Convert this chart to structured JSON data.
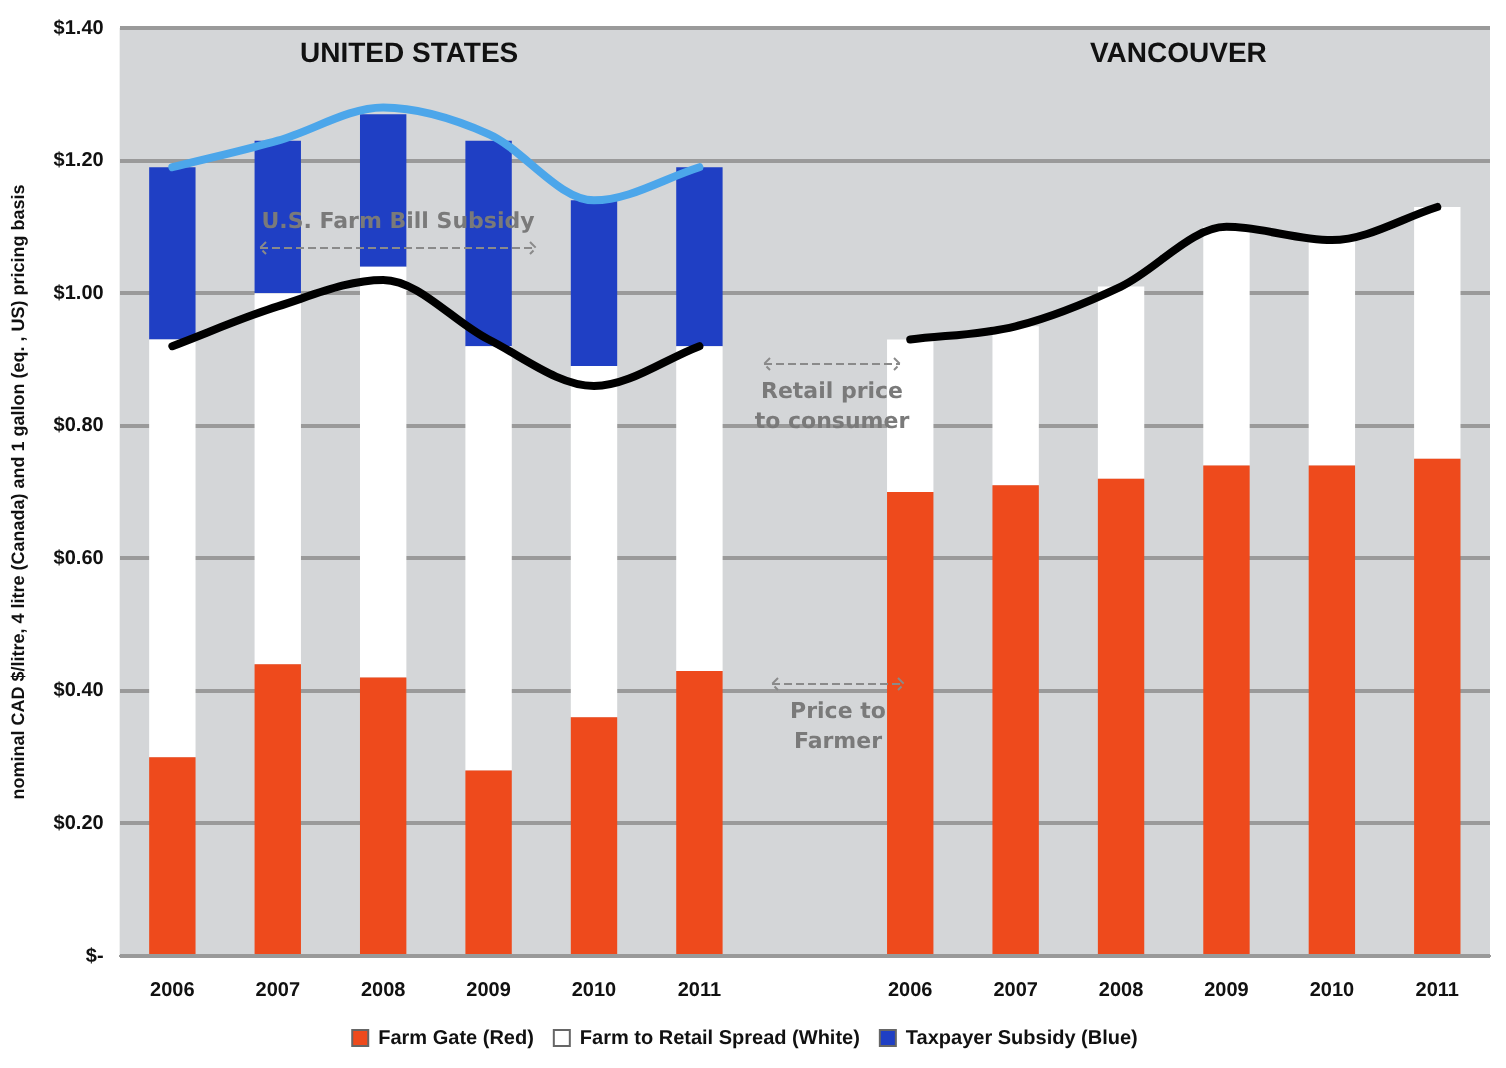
{
  "chart_data": {
    "type": "bar",
    "stacked": true,
    "ylabel": "nominal CAD $/litre, 4 litre (Canada) and 1 gallon (eq. , US) pricing basis",
    "categories": [
      "2006",
      "2007",
      "2008",
      "2009",
      "2010",
      "2011",
      null,
      "2006",
      "2007",
      "2008",
      "2009",
      "2010",
      "2011"
    ],
    "series": [
      {
        "name": "Farm Gate (Red)",
        "color": "#ee4a1c",
        "values": [
          0.3,
          0.44,
          0.42,
          0.28,
          0.36,
          0.43,
          null,
          0.7,
          0.71,
          0.72,
          0.74,
          0.74,
          0.75
        ]
      },
      {
        "name": "Farm to Retail Spread (White)",
        "color": "#ffffff",
        "values": [
          0.63,
          0.56,
          0.62,
          0.64,
          0.53,
          0.49,
          null,
          0.23,
          0.24,
          0.29,
          0.36,
          0.34,
          0.38
        ]
      },
      {
        "name": "Taxpayer Subsidy (Blue)",
        "color": "#1f3fc4",
        "values": [
          0.26,
          0.23,
          0.23,
          0.31,
          0.25,
          0.27,
          null,
          null,
          null,
          null,
          null,
          null,
          null
        ]
      },
      {
        "type": "line",
        "color": "#4ca6ea",
        "values": [
          1.19,
          1.23,
          1.28,
          1.24,
          1.14,
          1.19,
          null,
          null,
          null,
          null,
          null,
          null,
          null
        ]
      },
      {
        "type": "line",
        "color": "#000000",
        "values": [
          0.92,
          0.98,
          1.02,
          0.93,
          0.86,
          0.92,
          null,
          0.93,
          0.95,
          1.01,
          1.1,
          1.08,
          1.13
        ]
      }
    ],
    "ylim": [
      0,
      1.4
    ],
    "yticks": [
      {
        "value": 0,
        "label": "$-"
      },
      {
        "value": 0.2,
        "label": "$0.20"
      },
      {
        "value": 0.4,
        "label": "$0.40"
      },
      {
        "value": 0.6,
        "label": "$0.60"
      },
      {
        "value": 0.8,
        "label": "$0.80"
      },
      {
        "value": 1.0,
        "label": "$1.00"
      },
      {
        "value": 1.2,
        "label": "$1.20"
      },
      {
        "value": 1.4,
        "label": "$1.40"
      }
    ],
    "grid": "y",
    "legend": "bottom",
    "marker": "none",
    "line_style": "solid",
    "annotations": [
      "UNITED STATES",
      "VANCOUVER",
      "U.S. Farm Bill Subsidy",
      "Retail price to consumer",
      "Price to Farmer"
    ]
  }
}
